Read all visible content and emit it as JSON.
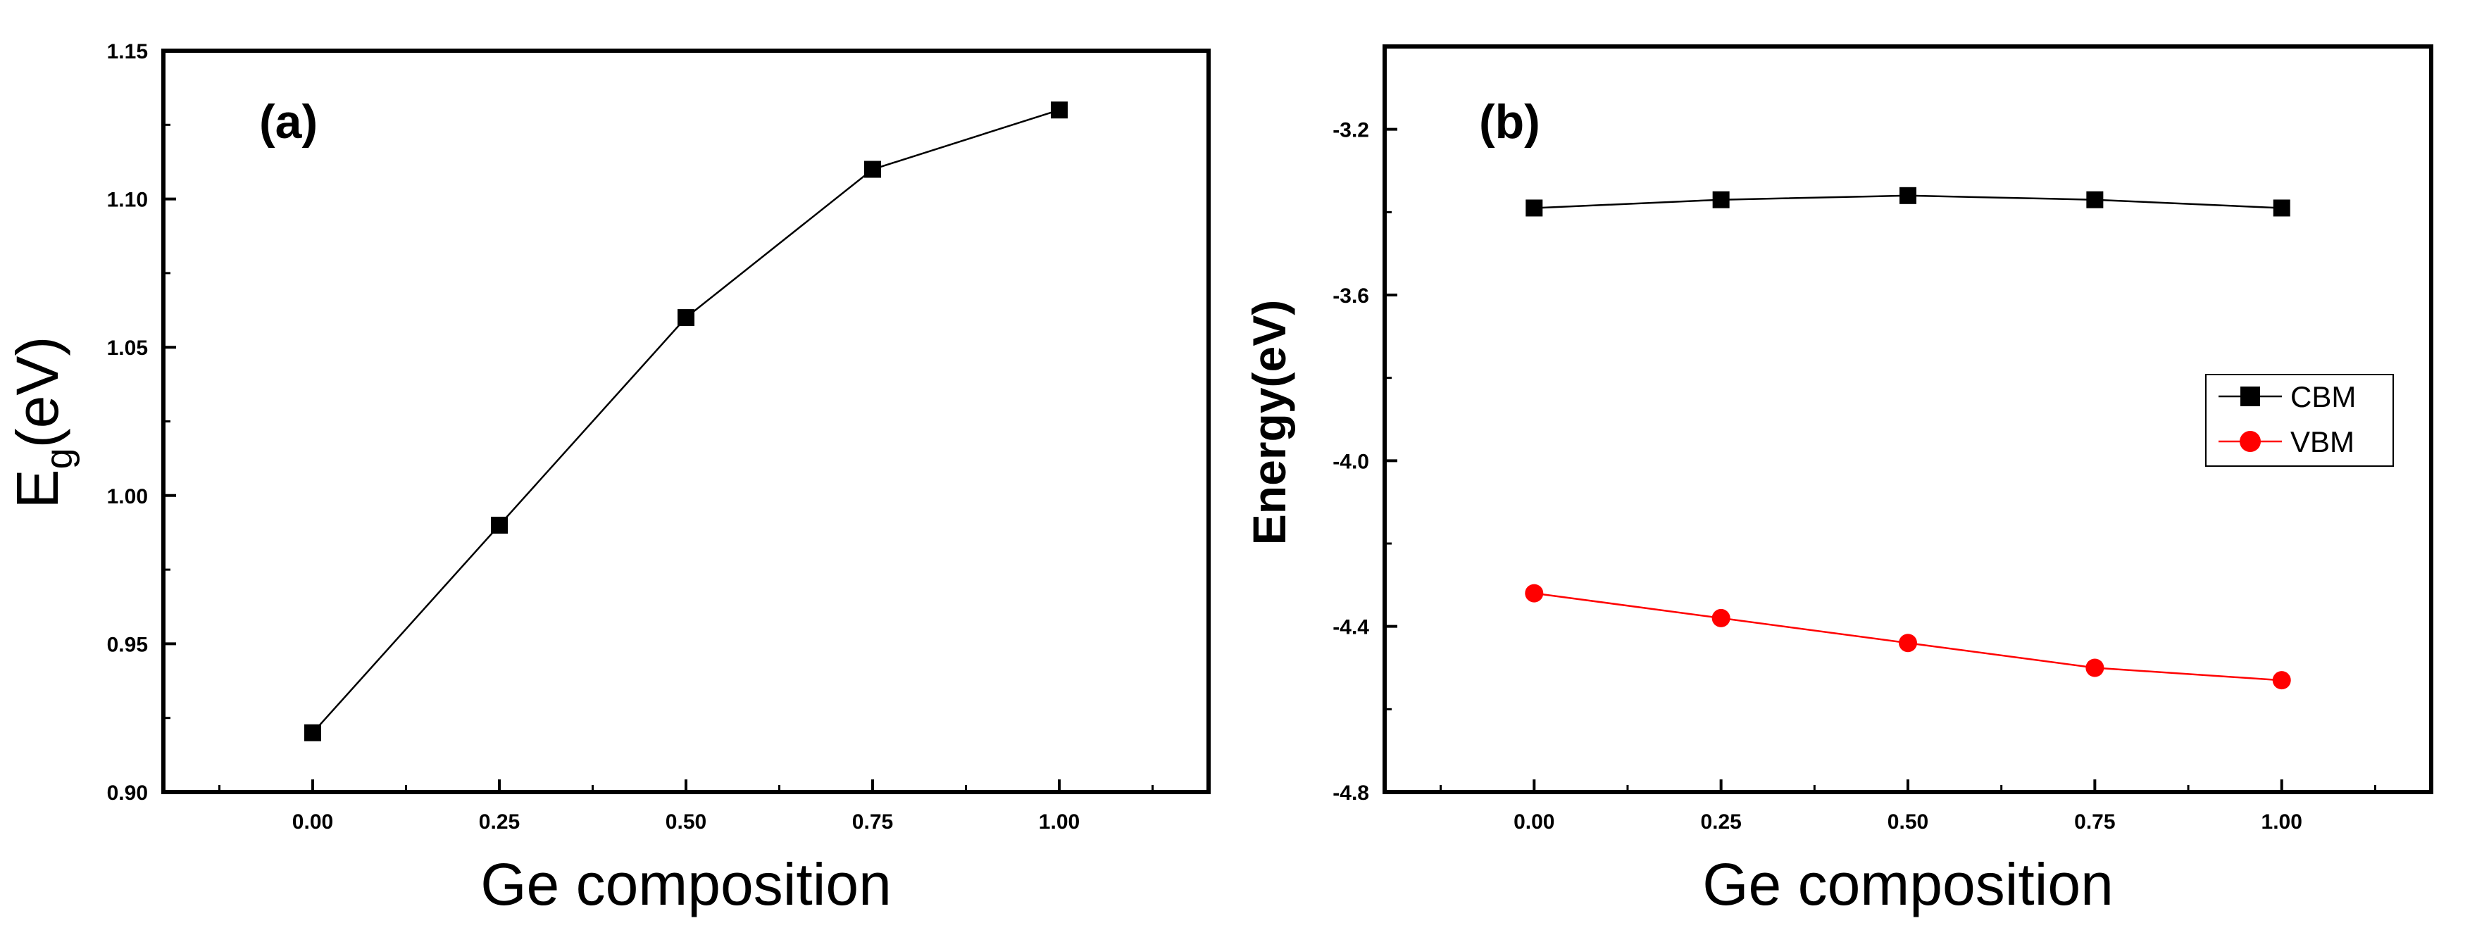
{
  "chart_data": [
    {
      "type": "line",
      "panel_label": "(a)",
      "title": "",
      "xlabel": "Ge composition",
      "ylabel_main": "E",
      "ylabel_sub": "g",
      "ylabel_unit": "(eV)",
      "xlim": [
        -0.2,
        1.2
      ],
      "ylim": [
        0.9,
        1.15
      ],
      "xticks": [
        0.0,
        0.25,
        0.5,
        0.75,
        1.0
      ],
      "xtick_labels": [
        "0.00",
        "0.25",
        "0.50",
        "0.75",
        "1.00"
      ],
      "yticks": [
        0.9,
        0.95,
        1.0,
        1.05,
        1.1,
        1.15
      ],
      "ytick_labels": [
        "0.90",
        "0.95",
        "1.00",
        "1.05",
        "1.10",
        "1.15"
      ],
      "x": [
        0.0,
        0.25,
        0.5,
        0.75,
        1.0
      ],
      "series": [
        {
          "name": "Eg",
          "color": "#000000",
          "marker": "square",
          "values": [
            0.92,
            0.99,
            1.06,
            1.11,
            1.13
          ]
        }
      ],
      "grid": false,
      "legend": "none"
    },
    {
      "type": "line",
      "panel_label": "(b)",
      "title": "",
      "xlabel": "Ge composition",
      "ylabel": "Energy(eV)",
      "xlim": [
        -0.2,
        1.2
      ],
      "ylim": [
        -4.8,
        -3.0
      ],
      "xticks": [
        0.0,
        0.25,
        0.5,
        0.75,
        1.0
      ],
      "xtick_labels": [
        "0.00",
        "0.25",
        "0.50",
        "0.75",
        "1.00"
      ],
      "yticks": [
        -4.8,
        -4.4,
        -4.0,
        -3.6,
        -3.2
      ],
      "ytick_labels": [
        "-4.8",
        "-4.4",
        "-4.0",
        "-3.6",
        "-3.2"
      ],
      "x": [
        0.0,
        0.25,
        0.5,
        0.75,
        1.0
      ],
      "series": [
        {
          "name": "CBM",
          "color": "#000000",
          "marker": "square",
          "values": [
            -3.39,
            -3.37,
            -3.36,
            -3.37,
            -3.39
          ]
        },
        {
          "name": "VBM",
          "color": "#ff0000",
          "marker": "circle",
          "values": [
            -4.32,
            -4.38,
            -4.44,
            -4.5,
            -4.53
          ]
        }
      ],
      "grid": false,
      "legend": "right"
    }
  ]
}
